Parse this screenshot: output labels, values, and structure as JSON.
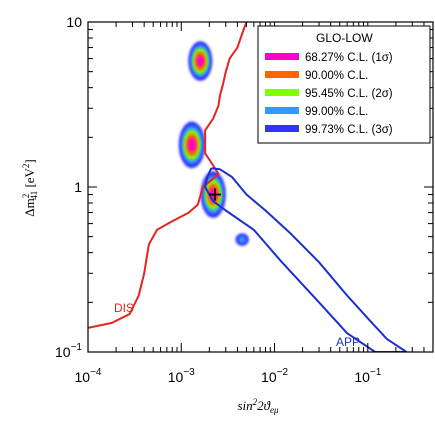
{
  "chart_data": {
    "type": "contour",
    "title": "",
    "xlabel": "sin²2ϑ_eμ",
    "ylabel": "Δm²₄₁ [eV²]",
    "xscale": "log",
    "yscale": "log",
    "xlim": [
      0.0001,
      0.5
    ],
    "ylim": [
      0.1,
      10
    ],
    "x_ticks": [
      {
        "value": 0.0001,
        "base": "10",
        "exp": "−4"
      },
      {
        "value": 0.001,
        "base": "10",
        "exp": "−3"
      },
      {
        "value": 0.01,
        "base": "10",
        "exp": "−2"
      },
      {
        "value": 0.1,
        "base": "10",
        "exp": "−1"
      }
    ],
    "y_ticks": [
      {
        "value": 0.1,
        "base": "10",
        "exp": "−1"
      },
      {
        "value": 1,
        "label": "1"
      },
      {
        "value": 10,
        "label": "10"
      }
    ],
    "legend": {
      "title": "GLO-LOW",
      "position": "top-right",
      "entries": [
        {
          "label": "68.27% C.L. (1σ)",
          "color": "#ff00cc"
        },
        {
          "label": "90.00% C.L.",
          "color": "#ff6600"
        },
        {
          "label": "95.45% C.L. (2σ)",
          "color": "#80ff00"
        },
        {
          "label": "99.00% C.L.",
          "color": "#3399ff"
        },
        {
          "label": "99.73% C.L. (3σ)",
          "color": "#3333ff"
        }
      ]
    },
    "regions": [
      {
        "name": "upper island",
        "center": [
          0.0016,
          5.8
        ],
        "spread": [
          0.00055,
          1.4
        ]
      },
      {
        "name": "middle island",
        "center": [
          0.0013,
          1.8
        ],
        "spread": [
          0.0005,
          0.5
        ]
      },
      {
        "name": "best-fit island",
        "center": [
          0.0022,
          0.9
        ],
        "spread": [
          0.0008,
          0.25
        ]
      },
      {
        "name": "small island",
        "center": [
          0.0045,
          0.48
        ],
        "spread": [
          0.0008,
          0.04
        ]
      }
    ],
    "best_fit": {
      "x": 0.0023,
      "y": 0.9
    },
    "curves": [
      {
        "name": "DIS",
        "color": "#e8231e",
        "points": [
          [
            0.0001,
            0.14
          ],
          [
            0.00018,
            0.15
          ],
          [
            0.00028,
            0.17
          ],
          [
            0.00035,
            0.22
          ],
          [
            0.0004,
            0.3
          ],
          [
            0.00045,
            0.45
          ],
          [
            0.00055,
            0.55
          ],
          [
            0.0008,
            0.62
          ],
          [
            0.0012,
            0.7
          ],
          [
            0.0015,
            0.78
          ],
          [
            0.0016,
            0.88
          ],
          [
            0.0017,
            1.0
          ],
          [
            0.0021,
            1.1
          ],
          [
            0.0025,
            1.2
          ],
          [
            0.0022,
            1.35
          ],
          [
            0.0018,
            1.6
          ],
          [
            0.0018,
            2.2
          ],
          [
            0.0022,
            2.6
          ],
          [
            0.0025,
            3.1
          ],
          [
            0.0026,
            3.6
          ],
          [
            0.0028,
            4.2
          ],
          [
            0.003,
            5.0
          ],
          [
            0.0033,
            6.0
          ],
          [
            0.004,
            7.0
          ],
          [
            0.0045,
            8.5
          ],
          [
            0.005,
            10.0
          ]
        ]
      },
      {
        "name": "APP",
        "color": "#1c2fcc",
        "points": [
          [
            0.0021,
            1.3
          ],
          [
            0.0026,
            1.28
          ],
          [
            0.0035,
            1.15
          ],
          [
            0.005,
            0.9
          ],
          [
            0.008,
            0.72
          ],
          [
            0.015,
            0.52
          ],
          [
            0.03,
            0.35
          ],
          [
            0.06,
            0.22
          ],
          [
            0.1,
            0.16
          ],
          [
            0.16,
            0.12
          ],
          [
            0.26,
            0.1
          ],
          [
            0.12,
            0.1
          ],
          [
            0.06,
            0.13
          ],
          [
            0.03,
            0.2
          ],
          [
            0.012,
            0.35
          ],
          [
            0.006,
            0.55
          ],
          [
            0.003,
            0.72
          ],
          [
            0.0022,
            0.82
          ],
          [
            0.0018,
            1.0
          ],
          [
            0.0019,
            1.15
          ],
          [
            0.0021,
            1.3
          ]
        ]
      }
    ]
  }
}
